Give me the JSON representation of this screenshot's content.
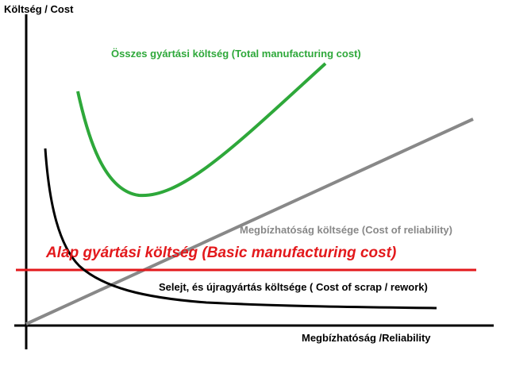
{
  "axes": {
    "y_label": "Költség / Cost",
    "x_label": "Megbízhatóság /Reliability"
  },
  "curves": [
    {
      "label": "Összes gyártási költség (Total manufacturing cost)"
    },
    {
      "label": "Megbízhatóság költsége (Cost of reliability)"
    },
    {
      "label": "Alap gyártási költség (Basic manufacturing cost)"
    },
    {
      "label": "Selejt, és újragyártás költsége ( Cost of scrap / rework)"
    }
  ]
}
